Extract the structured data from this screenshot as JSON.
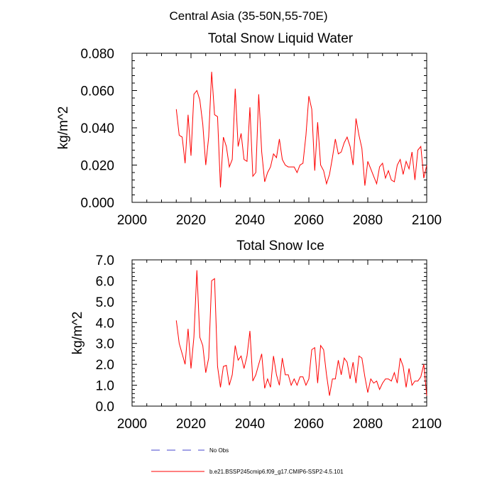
{
  "suptitle": "Central Asia (35-50N,55-70E)",
  "chart_data": [
    {
      "type": "line",
      "title": "Total Snow Liquid Water",
      "xlabel": "",
      "ylabel": "kg/m^2",
      "xlim": [
        2000,
        2100
      ],
      "ylim": [
        0,
        0.08
      ],
      "xticks": [
        2000,
        2020,
        2040,
        2060,
        2080,
        2100
      ],
      "yticks": [
        0,
        0.02,
        0.04,
        0.06,
        0.08
      ],
      "xtick_labels": [
        "2000",
        "2020",
        "2040",
        "2060",
        "2080",
        "2100"
      ],
      "ytick_labels": [
        "0.000",
        "0.020",
        "0.040",
        "0.060",
        "0.080"
      ],
      "series": [
        {
          "name": "b.e21.BSSP245cmip6.f09_g17.CMIP6-SSP2-4.5.101",
          "color": "#ff0000",
          "x": [
            2015,
            2016,
            2017,
            2018,
            2019,
            2020,
            2021,
            2022,
            2023,
            2024,
            2025,
            2026,
            2027,
            2028,
            2029,
            2030,
            2031,
            2032,
            2033,
            2034,
            2035,
            2036,
            2037,
            2038,
            2039,
            2040,
            2041,
            2042,
            2043,
            2044,
            2045,
            2046,
            2047,
            2048,
            2049,
            2050,
            2051,
            2052,
            2053,
            2054,
            2055,
            2056,
            2057,
            2058,
            2059,
            2060,
            2061,
            2062,
            2063,
            2064,
            2065,
            2066,
            2067,
            2068,
            2069,
            2070,
            2071,
            2072,
            2073,
            2074,
            2075,
            2076,
            2077,
            2078,
            2079,
            2080,
            2081,
            2082,
            2083,
            2084,
            2085,
            2086,
            2087,
            2088,
            2089,
            2090,
            2091,
            2092,
            2093,
            2094,
            2095,
            2096,
            2097,
            2098,
            2099,
            2100
          ],
          "values": [
            0.05,
            0.036,
            0.035,
            0.021,
            0.047,
            0.025,
            0.058,
            0.06,
            0.055,
            0.042,
            0.02,
            0.035,
            0.07,
            0.047,
            0.046,
            0.008,
            0.035,
            0.03,
            0.019,
            0.023,
            0.061,
            0.03,
            0.037,
            0.023,
            0.022,
            0.051,
            0.014,
            0.016,
            0.058,
            0.027,
            0.011,
            0.016,
            0.019,
            0.026,
            0.024,
            0.034,
            0.023,
            0.02,
            0.019,
            0.019,
            0.019,
            0.016,
            0.02,
            0.021,
            0.036,
            0.057,
            0.05,
            0.017,
            0.043,
            0.02,
            0.017,
            0.01,
            0.015,
            0.024,
            0.034,
            0.026,
            0.027,
            0.032,
            0.035,
            0.03,
            0.02,
            0.045,
            0.036,
            0.029,
            0.009,
            0.022,
            0.018,
            0.014,
            0.01,
            0.019,
            0.021,
            0.013,
            0.017,
            0.012,
            0.011,
            0.02,
            0.023,
            0.015,
            0.022,
            0.018,
            0.027,
            0.012,
            0.028,
            0.03,
            0.013,
            0.02
          ]
        }
      ]
    },
    {
      "type": "line",
      "title": "Total Snow Ice",
      "xlabel": "",
      "ylabel": "kg/m^2",
      "xlim": [
        2000,
        2100
      ],
      "ylim": [
        0,
        7
      ],
      "xticks": [
        2000,
        2020,
        2040,
        2060,
        2080,
        2100
      ],
      "yticks": [
        0,
        1,
        2,
        3,
        4,
        5,
        6,
        7
      ],
      "xtick_labels": [
        "2000",
        "2020",
        "2040",
        "2060",
        "2080",
        "2100"
      ],
      "ytick_labels": [
        "0.0",
        "1.0",
        "2.0",
        "3.0",
        "4.0",
        "5.0",
        "6.0",
        "7.0"
      ],
      "series": [
        {
          "name": "b.e21.BSSP245cmip6.f09_g17.CMIP6-SSP2-4.5.101",
          "color": "#ff0000",
          "x": [
            2015,
            2016,
            2017,
            2018,
            2019,
            2020,
            2021,
            2022,
            2023,
            2024,
            2025,
            2026,
            2027,
            2028,
            2029,
            2030,
            2031,
            2032,
            2033,
            2034,
            2035,
            2036,
            2037,
            2038,
            2039,
            2040,
            2041,
            2042,
            2043,
            2044,
            2045,
            2046,
            2047,
            2048,
            2049,
            2050,
            2051,
            2052,
            2053,
            2054,
            2055,
            2056,
            2057,
            2058,
            2059,
            2060,
            2061,
            2062,
            2063,
            2064,
            2065,
            2066,
            2067,
            2068,
            2069,
            2070,
            2071,
            2072,
            2073,
            2074,
            2075,
            2076,
            2077,
            2078,
            2079,
            2080,
            2081,
            2082,
            2083,
            2084,
            2085,
            2086,
            2087,
            2088,
            2089,
            2090,
            2091,
            2092,
            2093,
            2094,
            2095,
            2096,
            2097,
            2098,
            2099,
            2100
          ],
          "values": [
            4.1,
            3.0,
            2.5,
            2.0,
            3.7,
            1.8,
            3.3,
            6.5,
            3.3,
            2.9,
            1.6,
            2.3,
            6.0,
            6.1,
            1.9,
            0.9,
            1.9,
            1.95,
            1.0,
            1.5,
            2.9,
            2.2,
            2.4,
            1.8,
            2.4,
            3.6,
            1.2,
            1.5,
            2.0,
            2.5,
            0.85,
            1.3,
            0.9,
            2.4,
            1.5,
            1.0,
            2.3,
            1.5,
            1.5,
            1.0,
            1.3,
            1.0,
            1.4,
            1.4,
            1.0,
            1.3,
            2.7,
            2.8,
            1.1,
            2.9,
            2.7,
            1.5,
            0.5,
            1.3,
            1.3,
            2.2,
            1.5,
            2.3,
            2.1,
            1.3,
            2.1,
            1.1,
            2.4,
            2.3,
            1.4,
            0.65,
            1.3,
            1.1,
            1.2,
            0.8,
            1.1,
            1.3,
            1.3,
            1.2,
            1.6,
            1.1,
            2.3,
            1.9,
            0.9,
            1.8,
            1.0,
            1.2,
            1.2,
            1.4,
            2.0,
            0.5
          ]
        }
      ]
    }
  ],
  "legend": {
    "items": [
      {
        "label": "No Obs",
        "color": "#4444cc",
        "style": "dashed"
      },
      {
        "label": "b.e21.BSSP245cmip6.f09_g17.CMIP6-SSP2-4.5.101",
        "color": "#ff0000",
        "style": "solid"
      }
    ]
  }
}
